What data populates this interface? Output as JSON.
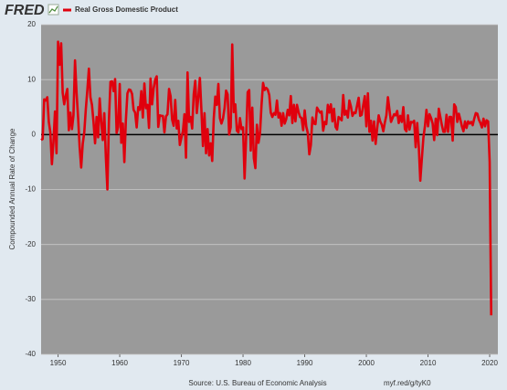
{
  "chart_data": {
    "type": "line",
    "logo": "FRED",
    "ylabel": "Compounded Annual Rate of Change",
    "source": "Source: U.S. Bureau of Economic Analysis",
    "link": "myf.red/g/tyK0",
    "xlim": [
      1947.25,
      2021.33
    ],
    "ylim": [
      -40,
      20
    ],
    "xticks": [
      1950,
      1960,
      1970,
      1980,
      1990,
      2000,
      2010,
      2020
    ],
    "yticks": [
      -40,
      -30,
      -20,
      -10,
      0,
      10,
      20
    ],
    "grid": true,
    "x": [
      1947.25,
      1947.5,
      1947.75,
      1948,
      1948.25,
      1948.5,
      1948.75,
      1949,
      1949.25,
      1949.5,
      1949.75,
      1950,
      1950.25,
      1950.5,
      1950.75,
      1951,
      1951.25,
      1951.5,
      1951.75,
      1952,
      1952.25,
      1952.5,
      1952.75,
      1953,
      1953.25,
      1953.5,
      1953.75,
      1954,
      1954.25,
      1954.5,
      1954.75,
      1955,
      1955.25,
      1955.5,
      1955.75,
      1956,
      1956.25,
      1956.5,
      1956.75,
      1957,
      1957.25,
      1957.5,
      1957.75,
      1958,
      1958.25,
      1958.5,
      1958.75,
      1959,
      1959.25,
      1959.5,
      1959.75,
      1960,
      1960.25,
      1960.5,
      1960.75,
      1961,
      1961.25,
      1961.5,
      1961.75,
      1962,
      1962.25,
      1962.5,
      1962.75,
      1963,
      1963.25,
      1963.5,
      1963.75,
      1964,
      1964.25,
      1964.5,
      1964.75,
      1965,
      1965.25,
      1965.5,
      1965.75,
      1966,
      1966.25,
      1966.5,
      1966.75,
      1967,
      1967.25,
      1967.5,
      1967.75,
      1968,
      1968.25,
      1968.5,
      1968.75,
      1969,
      1969.25,
      1969.5,
      1969.75,
      1970,
      1970.25,
      1970.5,
      1970.75,
      1971,
      1971.25,
      1971.5,
      1971.75,
      1972,
      1972.25,
      1972.5,
      1972.75,
      1973,
      1973.25,
      1973.5,
      1973.75,
      1974,
      1974.25,
      1974.5,
      1974.75,
      1975,
      1975.25,
      1975.5,
      1975.75,
      1976,
      1976.25,
      1976.5,
      1976.75,
      1977,
      1977.25,
      1977.5,
      1977.75,
      1978,
      1978.25,
      1978.5,
      1978.75,
      1979,
      1979.25,
      1979.5,
      1979.75,
      1980,
      1980.25,
      1980.5,
      1980.75,
      1981,
      1981.25,
      1981.5,
      1981.75,
      1982,
      1982.25,
      1982.5,
      1982.75,
      1983,
      1983.25,
      1983.5,
      1983.75,
      1984,
      1984.25,
      1984.5,
      1984.75,
      1985,
      1985.25,
      1985.5,
      1985.75,
      1986,
      1986.25,
      1986.5,
      1986.75,
      1987,
      1987.25,
      1987.5,
      1987.75,
      1988,
      1988.25,
      1988.5,
      1988.75,
      1989,
      1989.25,
      1989.5,
      1989.75,
      1990,
      1990.25,
      1990.5,
      1990.75,
      1991,
      1991.25,
      1991.5,
      1991.75,
      1992,
      1992.25,
      1992.5,
      1992.75,
      1993,
      1993.25,
      1993.5,
      1993.75,
      1994,
      1994.25,
      1994.5,
      1994.75,
      1995,
      1995.25,
      1995.5,
      1995.75,
      1996,
      1996.25,
      1996.5,
      1996.75,
      1997,
      1997.25,
      1997.5,
      1997.75,
      1998,
      1998.25,
      1998.5,
      1998.75,
      1999,
      1999.25,
      1999.5,
      1999.75,
      2000,
      2000.25,
      2000.5,
      2000.75,
      2001,
      2001.25,
      2001.5,
      2001.75,
      2002,
      2002.25,
      2002.5,
      2002.75,
      2003,
      2003.25,
      2003.5,
      2003.75,
      2004,
      2004.25,
      2004.5,
      2004.75,
      2005,
      2005.25,
      2005.5,
      2005.75,
      2006,
      2006.25,
      2006.5,
      2006.75,
      2007,
      2007.25,
      2007.5,
      2007.75,
      2008,
      2008.25,
      2008.5,
      2008.75,
      2009,
      2009.25,
      2009.5,
      2009.75,
      2010,
      2010.25,
      2010.5,
      2010.75,
      2011,
      2011.25,
      2011.5,
      2011.75,
      2012,
      2012.25,
      2012.5,
      2012.75,
      2013,
      2013.25,
      2013.5,
      2013.75,
      2014,
      2014.25,
      2014.5,
      2014.75,
      2015,
      2015.25,
      2015.5,
      2015.75,
      2016,
      2016.25,
      2016.5,
      2016.75,
      2017,
      2017.25,
      2017.5,
      2017.75,
      2018,
      2018.25,
      2018.5,
      2018.75,
      2019,
      2019.25,
      2019.5,
      2019.75,
      2020,
      2020.25
    ],
    "series": [
      {
        "name": "Real Gross Domestic Product",
        "color": "#e0000d",
        "values": [
          -1.0,
          -0.8,
          6.4,
          6.2,
          6.8,
          2.3,
          0.4,
          -5.4,
          -1.4,
          4.2,
          -3.4,
          16.9,
          12.7,
          16.6,
          7.6,
          5.5,
          7.1,
          8.3,
          0.8,
          4.0,
          1.0,
          3.5,
          13.5,
          7.6,
          3.1,
          -2.3,
          -6.0,
          -1.7,
          0.4,
          4.6,
          8.1,
          12.0,
          6.8,
          5.4,
          2.3,
          -1.6,
          3.2,
          -0.5,
          6.6,
          2.4,
          -1.0,
          3.9,
          -4.1,
          -10.0,
          2.6,
          9.6,
          9.7,
          7.9,
          10.1,
          0.3,
          1.4,
          9.2,
          -1.5,
          2.0,
          -5.0,
          2.7,
          7.5,
          8.2,
          8.1,
          7.4,
          4.5,
          4.0,
          1.3,
          5.0,
          4.5,
          7.9,
          3.1,
          9.3,
          4.8,
          5.4,
          1.2,
          10.2,
          5.5,
          8.4,
          10.0,
          10.6,
          1.4,
          3.5,
          3.4,
          3.4,
          0.4,
          3.3,
          3.7,
          8.3,
          7.0,
          2.7,
          1.6,
          6.3,
          1.1,
          2.5,
          -1.9,
          -0.6,
          0.6,
          3.7,
          -4.2,
          11.3,
          2.3,
          3.2,
          1.1,
          7.3,
          9.8,
          3.9,
          6.8,
          10.3,
          4.4,
          -2.1,
          3.9,
          -3.4,
          1.0,
          -3.8,
          -1.6,
          -4.8,
          2.9,
          6.9,
          5.4,
          9.2,
          3.0,
          2.0,
          2.9,
          4.8,
          8.0,
          7.3,
          0.0,
          1.3,
          16.4,
          4.1,
          5.5,
          0.7,
          0.4,
          3.0,
          1.0,
          1.3,
          -8.0,
          -0.5,
          7.7,
          8.1,
          -2.9,
          4.9,
          -4.3,
          -6.1,
          1.8,
          -1.5,
          0.2,
          5.4,
          9.4,
          8.1,
          8.5,
          8.2,
          7.2,
          4.0,
          3.2,
          3.9,
          3.6,
          6.2,
          3.1,
          3.9,
          1.6,
          3.9,
          2.0,
          2.8,
          4.5,
          3.5,
          7.0,
          2.1,
          5.4,
          2.4,
          5.4,
          4.1,
          3.2,
          3.0,
          0.8,
          4.4,
          1.5,
          0.3,
          -3.6,
          -1.9,
          3.1,
          2.0,
          1.9,
          4.9,
          4.4,
          4.0,
          4.2,
          0.7,
          2.3,
          1.9,
          5.4,
          4.0,
          5.5,
          2.4,
          4.7,
          1.4,
          0.9,
          3.2,
          2.9,
          2.6,
          7.2,
          3.6,
          4.3,
          3.1,
          6.2,
          5.1,
          3.4,
          4.0,
          3.9,
          5.3,
          6.7,
          3.4,
          3.6,
          5.4,
          7.0,
          1.5,
          7.5,
          0.5,
          2.5,
          -1.1,
          2.4,
          -1.7,
          1.1,
          3.5,
          2.4,
          1.8,
          0.6,
          2.2,
          3.5,
          6.8,
          4.5,
          2.3,
          3.0,
          3.7,
          3.5,
          4.3,
          2.1,
          3.4,
          2.3,
          5.0,
          1.0,
          0.6,
          3.5,
          0.9,
          2.3,
          2.2,
          2.5,
          -2.3,
          2.1,
          -2.1,
          -8.4,
          -4.4,
          -0.6,
          1.5,
          4.5,
          1.5,
          3.7,
          3.0,
          2.0,
          -1.0,
          2.9,
          -0.1,
          4.7,
          3.2,
          1.7,
          0.5,
          0.5,
          3.6,
          0.5,
          3.2,
          3.2,
          -1.1,
          5.5,
          5.0,
          2.3,
          3.8,
          2.7,
          1.5,
          0.6,
          2.4,
          1.2,
          2.4,
          2.0,
          2.3,
          1.7,
          2.9,
          3.9,
          3.8,
          2.7,
          2.1,
          1.3,
          2.9,
          1.5,
          2.6,
          2.4,
          -5.0,
          -32.9
        ]
      }
    ]
  }
}
